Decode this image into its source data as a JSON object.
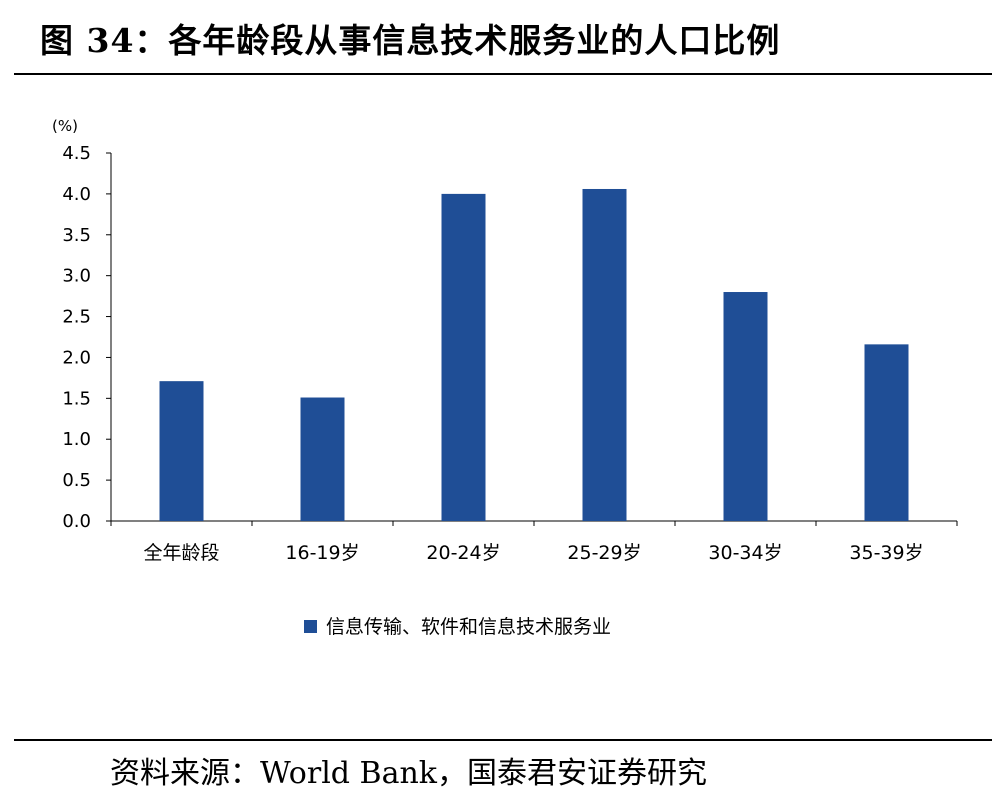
{
  "figure": {
    "title": "图 34：各年龄段从事信息技术服务业的人口比例",
    "source": "资料来源：World Bank，国泰君安证券研究"
  },
  "chart_data": {
    "type": "bar",
    "unit_label": "(%)",
    "categories": [
      "全年龄段",
      "16-19岁",
      "20-24岁",
      "25-29岁",
      "30-34岁",
      "35-39岁"
    ],
    "series": [
      {
        "name": "信息传输、软件和信息技术服务业",
        "values": [
          1.71,
          1.51,
          4.0,
          4.06,
          2.8,
          2.16
        ],
        "color": "#1F4E96"
      }
    ],
    "ylim": [
      0,
      4.5
    ],
    "yticks": [
      "0.0",
      "0.5",
      "1.0",
      "1.5",
      "2.0",
      "2.5",
      "3.0",
      "3.5",
      "4.0",
      "4.5"
    ],
    "grid": false,
    "legend_position": "bottom"
  }
}
